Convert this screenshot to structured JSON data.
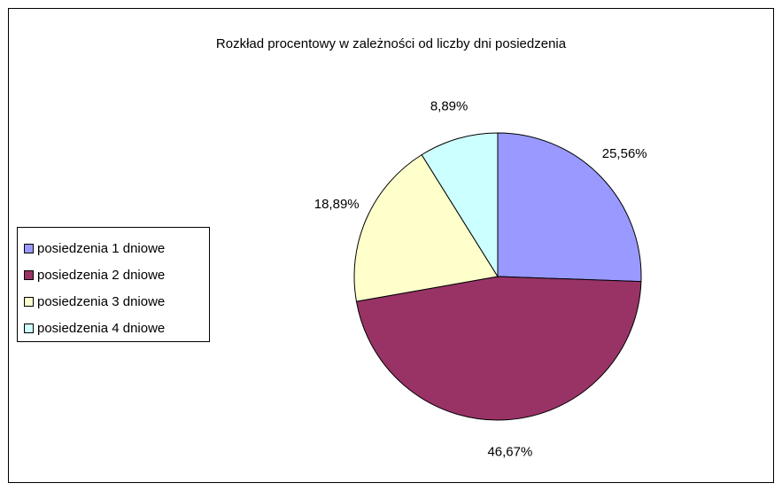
{
  "chart_data": {
    "type": "pie",
    "title": "Rozkład procentowy w zależności od liczby dni posiedzenia",
    "categories": [
      "posiedzenia 1 dniowe",
      "posiedzenia 2 dniowe",
      "posiedzenia 3 dniowe",
      "posiedzenia 4 dniowe"
    ],
    "values": [
      25.56,
      46.67,
      18.89,
      8.89
    ],
    "data_labels": [
      "25,56%",
      "46,67%",
      "18,89%",
      "8,89%"
    ],
    "colors": [
      "#9999ff",
      "#993366",
      "#ffffcc",
      "#ccffff"
    ],
    "legend_placement": "left"
  }
}
